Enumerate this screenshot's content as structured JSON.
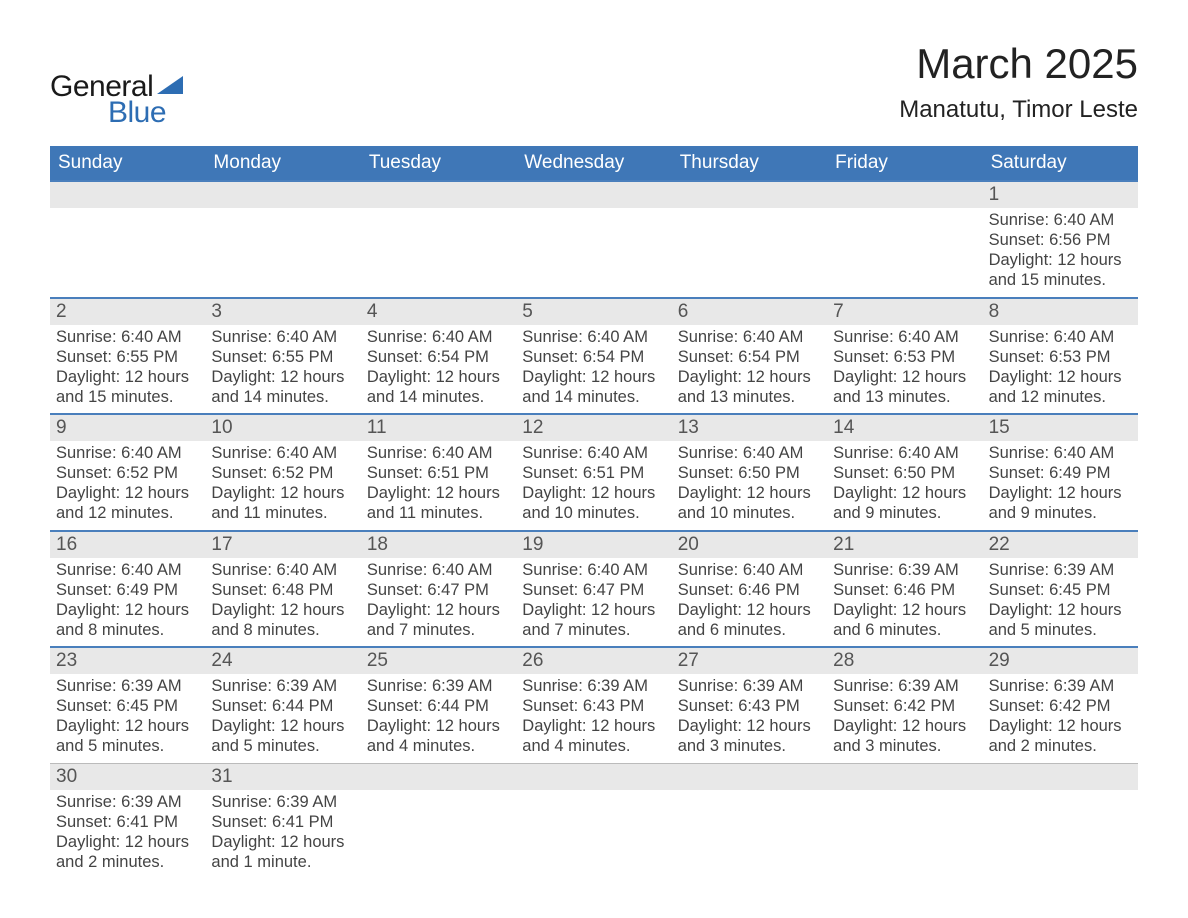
{
  "logo": {
    "line1": "General",
    "line2": "Blue"
  },
  "title": "March 2025",
  "location": "Manatutu, Timor Leste",
  "colors": {
    "header_blue": "#3f77b7",
    "row_line": "#4a7fbc",
    "daynum_bg": "#e8e8e8",
    "logo_blue": "#2d6db3",
    "text_dark": "#333333"
  },
  "days_of_week": [
    "Sunday",
    "Monday",
    "Tuesday",
    "Wednesday",
    "Thursday",
    "Friday",
    "Saturday"
  ],
  "labels": {
    "sunrise": "Sunrise:",
    "sunset": "Sunset:",
    "daylight": "Daylight:"
  },
  "weeks": [
    [
      {
        "blank": true
      },
      {
        "blank": true
      },
      {
        "blank": true
      },
      {
        "blank": true
      },
      {
        "blank": true
      },
      {
        "blank": true
      },
      {
        "num": "1",
        "sunrise": "6:40 AM",
        "sunset": "6:56 PM",
        "daylight": "12 hours and 15 minutes."
      }
    ],
    [
      {
        "num": "2",
        "sunrise": "6:40 AM",
        "sunset": "6:55 PM",
        "daylight": "12 hours and 15 minutes."
      },
      {
        "num": "3",
        "sunrise": "6:40 AM",
        "sunset": "6:55 PM",
        "daylight": "12 hours and 14 minutes."
      },
      {
        "num": "4",
        "sunrise": "6:40 AM",
        "sunset": "6:54 PM",
        "daylight": "12 hours and 14 minutes."
      },
      {
        "num": "5",
        "sunrise": "6:40 AM",
        "sunset": "6:54 PM",
        "daylight": "12 hours and 14 minutes."
      },
      {
        "num": "6",
        "sunrise": "6:40 AM",
        "sunset": "6:54 PM",
        "daylight": "12 hours and 13 minutes."
      },
      {
        "num": "7",
        "sunrise": "6:40 AM",
        "sunset": "6:53 PM",
        "daylight": "12 hours and 13 minutes."
      },
      {
        "num": "8",
        "sunrise": "6:40 AM",
        "sunset": "6:53 PM",
        "daylight": "12 hours and 12 minutes."
      }
    ],
    [
      {
        "num": "9",
        "sunrise": "6:40 AM",
        "sunset": "6:52 PM",
        "daylight": "12 hours and 12 minutes."
      },
      {
        "num": "10",
        "sunrise": "6:40 AM",
        "sunset": "6:52 PM",
        "daylight": "12 hours and 11 minutes."
      },
      {
        "num": "11",
        "sunrise": "6:40 AM",
        "sunset": "6:51 PM",
        "daylight": "12 hours and 11 minutes."
      },
      {
        "num": "12",
        "sunrise": "6:40 AM",
        "sunset": "6:51 PM",
        "daylight": "12 hours and 10 minutes."
      },
      {
        "num": "13",
        "sunrise": "6:40 AM",
        "sunset": "6:50 PM",
        "daylight": "12 hours and 10 minutes."
      },
      {
        "num": "14",
        "sunrise": "6:40 AM",
        "sunset": "6:50 PM",
        "daylight": "12 hours and 9 minutes."
      },
      {
        "num": "15",
        "sunrise": "6:40 AM",
        "sunset": "6:49 PM",
        "daylight": "12 hours and 9 minutes."
      }
    ],
    [
      {
        "num": "16",
        "sunrise": "6:40 AM",
        "sunset": "6:49 PM",
        "daylight": "12 hours and 8 minutes."
      },
      {
        "num": "17",
        "sunrise": "6:40 AM",
        "sunset": "6:48 PM",
        "daylight": "12 hours and 8 minutes."
      },
      {
        "num": "18",
        "sunrise": "6:40 AM",
        "sunset": "6:47 PM",
        "daylight": "12 hours and 7 minutes."
      },
      {
        "num": "19",
        "sunrise": "6:40 AM",
        "sunset": "6:47 PM",
        "daylight": "12 hours and 7 minutes."
      },
      {
        "num": "20",
        "sunrise": "6:40 AM",
        "sunset": "6:46 PM",
        "daylight": "12 hours and 6 minutes."
      },
      {
        "num": "21",
        "sunrise": "6:39 AM",
        "sunset": "6:46 PM",
        "daylight": "12 hours and 6 minutes."
      },
      {
        "num": "22",
        "sunrise": "6:39 AM",
        "sunset": "6:45 PM",
        "daylight": "12 hours and 5 minutes."
      }
    ],
    [
      {
        "num": "23",
        "sunrise": "6:39 AM",
        "sunset": "6:45 PM",
        "daylight": "12 hours and 5 minutes."
      },
      {
        "num": "24",
        "sunrise": "6:39 AM",
        "sunset": "6:44 PM",
        "daylight": "12 hours and 5 minutes."
      },
      {
        "num": "25",
        "sunrise": "6:39 AM",
        "sunset": "6:44 PM",
        "daylight": "12 hours and 4 minutes."
      },
      {
        "num": "26",
        "sunrise": "6:39 AM",
        "sunset": "6:43 PM",
        "daylight": "12 hours and 4 minutes."
      },
      {
        "num": "27",
        "sunrise": "6:39 AM",
        "sunset": "6:43 PM",
        "daylight": "12 hours and 3 minutes."
      },
      {
        "num": "28",
        "sunrise": "6:39 AM",
        "sunset": "6:42 PM",
        "daylight": "12 hours and 3 minutes."
      },
      {
        "num": "29",
        "sunrise": "6:39 AM",
        "sunset": "6:42 PM",
        "daylight": "12 hours and 2 minutes."
      }
    ],
    [
      {
        "num": "30",
        "sunrise": "6:39 AM",
        "sunset": "6:41 PM",
        "daylight": "12 hours and 2 minutes."
      },
      {
        "num": "31",
        "sunrise": "6:39 AM",
        "sunset": "6:41 PM",
        "daylight": "12 hours and 1 minute."
      },
      {
        "blank": true
      },
      {
        "blank": true
      },
      {
        "blank": true
      },
      {
        "blank": true
      },
      {
        "blank": true
      }
    ]
  ]
}
